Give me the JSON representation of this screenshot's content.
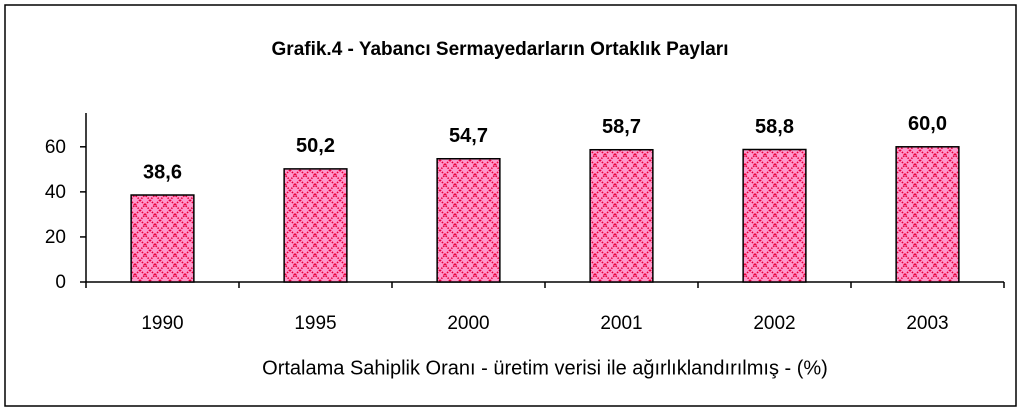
{
  "chart_data": {
    "type": "bar",
    "title": "Grafik.4 - Yabancı Sermayedarların Ortaklık Payları",
    "x_label": "Ortalama Sahiplik Oranı - üretim verisi ile ağırlıklandırılmış - (%)",
    "categories": [
      "1990",
      "1995",
      "2000",
      "2001",
      "2002",
      "2003"
    ],
    "values": [
      38.6,
      50.2,
      54.7,
      58.7,
      58.8,
      60.0
    ],
    "value_labels": [
      "38,6",
      "50,2",
      "54,7",
      "58,7",
      "58,8",
      "60,0"
    ],
    "color": "#ff99cc",
    "ylim": [
      0,
      75
    ],
    "yticks": [
      0,
      20,
      40,
      60
    ],
    "grid": false
  }
}
